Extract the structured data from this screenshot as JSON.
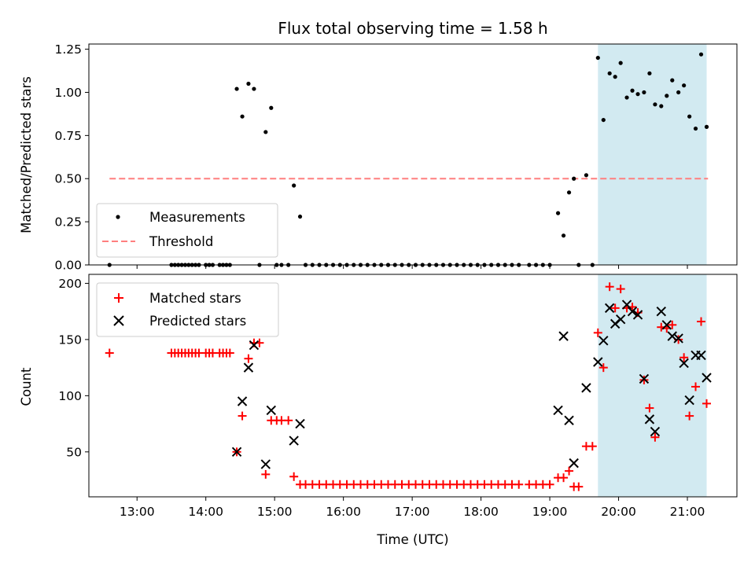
{
  "chart_data": [
    {
      "type": "scatter",
      "title": "Flux total observing time = 1.58 h",
      "xlabel": "",
      "ylabel": "Matched/Predicted stars",
      "ylim": [
        0,
        1.28
      ],
      "yticks": [
        "0.00",
        "0.25",
        "0.50",
        "0.75",
        "1.00",
        "1.25"
      ],
      "ytick_values": [
        0,
        0.25,
        0.5,
        0.75,
        1.0,
        1.25
      ],
      "legend_position": "lower-left",
      "threshold": {
        "name": "Threshold",
        "value": 0.5,
        "x_start": 12.6,
        "x_end": 21.3,
        "color": "#ff7f7f"
      },
      "highlight_range": {
        "x_start": 19.7,
        "x_end": 21.28,
        "color": "#add8e6"
      },
      "series": [
        {
          "name": "Measurements",
          "color": "#000000",
          "points": [
            [
              12.6,
              0
            ],
            [
              13.5,
              0
            ],
            [
              13.55,
              0
            ],
            [
              13.6,
              0
            ],
            [
              13.65,
              0
            ],
            [
              13.7,
              0
            ],
            [
              13.75,
              0
            ],
            [
              13.8,
              0
            ],
            [
              13.85,
              0
            ],
            [
              13.9,
              0
            ],
            [
              14.0,
              0
            ],
            [
              14.05,
              0
            ],
            [
              14.1,
              0
            ],
            [
              14.2,
              0
            ],
            [
              14.25,
              0
            ],
            [
              14.3,
              0
            ],
            [
              14.35,
              0
            ],
            [
              14.45,
              1.02
            ],
            [
              14.53,
              0.86
            ],
            [
              14.62,
              1.05
            ],
            [
              14.7,
              1.02
            ],
            [
              14.78,
              0
            ],
            [
              14.87,
              0.77
            ],
            [
              14.95,
              0.91
            ],
            [
              15.03,
              0
            ],
            [
              15.1,
              0
            ],
            [
              15.2,
              0
            ],
            [
              15.28,
              0.46
            ],
            [
              15.37,
              0.28
            ],
            [
              15.45,
              0
            ],
            [
              15.55,
              0
            ],
            [
              15.65,
              0
            ],
            [
              15.75,
              0
            ],
            [
              15.85,
              0
            ],
            [
              15.95,
              0
            ],
            [
              16.05,
              0
            ],
            [
              16.15,
              0
            ],
            [
              16.25,
              0
            ],
            [
              16.35,
              0
            ],
            [
              16.45,
              0
            ],
            [
              16.55,
              0
            ],
            [
              16.65,
              0
            ],
            [
              16.75,
              0
            ],
            [
              16.85,
              0
            ],
            [
              16.95,
              0
            ],
            [
              17.05,
              0
            ],
            [
              17.15,
              0
            ],
            [
              17.25,
              0
            ],
            [
              17.35,
              0
            ],
            [
              17.45,
              0
            ],
            [
              17.55,
              0
            ],
            [
              17.65,
              0
            ],
            [
              17.75,
              0
            ],
            [
              17.85,
              0
            ],
            [
              17.95,
              0
            ],
            [
              18.05,
              0
            ],
            [
              18.15,
              0
            ],
            [
              18.25,
              0
            ],
            [
              18.35,
              0
            ],
            [
              18.45,
              0
            ],
            [
              18.55,
              0
            ],
            [
              18.7,
              0
            ],
            [
              18.8,
              0
            ],
            [
              18.9,
              0
            ],
            [
              19.0,
              0
            ],
            [
              19.12,
              0.3
            ],
            [
              19.2,
              0.17
            ],
            [
              19.28,
              0.42
            ],
            [
              19.35,
              0.5
            ],
            [
              19.42,
              0
            ],
            [
              19.53,
              0.52
            ],
            [
              19.62,
              0
            ],
            [
              19.7,
              1.2
            ],
            [
              19.78,
              0.84
            ],
            [
              19.87,
              1.11
            ],
            [
              19.95,
              1.09
            ],
            [
              20.03,
              1.17
            ],
            [
              20.12,
              0.97
            ],
            [
              20.2,
              1.01
            ],
            [
              20.28,
              0.99
            ],
            [
              20.37,
              1.0
            ],
            [
              20.45,
              1.11
            ],
            [
              20.53,
              0.93
            ],
            [
              20.62,
              0.92
            ],
            [
              20.7,
              0.98
            ],
            [
              20.78,
              1.07
            ],
            [
              20.87,
              1.0
            ],
            [
              20.95,
              1.04
            ],
            [
              21.03,
              0.86
            ],
            [
              21.12,
              0.79
            ],
            [
              21.2,
              1.22
            ],
            [
              21.28,
              0.8
            ]
          ]
        }
      ]
    },
    {
      "type": "scatter",
      "title": "",
      "xlabel": "Time (UTC)",
      "ylabel": "Count",
      "xlim": [
        12.3,
        21.72
      ],
      "ylim": [
        10,
        208
      ],
      "xticks": [
        "13:00",
        "14:00",
        "15:00",
        "16:00",
        "17:00",
        "18:00",
        "19:00",
        "20:00",
        "21:00"
      ],
      "xtick_values": [
        13,
        14,
        15,
        16,
        17,
        18,
        19,
        20,
        21
      ],
      "yticks": [
        "50",
        "100",
        "150",
        "200"
      ],
      "ytick_values": [
        50,
        100,
        150,
        200
      ],
      "legend_position": "top-left",
      "highlight_range": {
        "x_start": 19.7,
        "x_end": 21.28,
        "color": "#add8e6"
      },
      "series": [
        {
          "name": "Matched stars",
          "color": "#ff0000",
          "marker": "plus",
          "points": [
            [
              12.6,
              138
            ],
            [
              13.5,
              138
            ],
            [
              13.55,
              138
            ],
            [
              13.6,
              138
            ],
            [
              13.65,
              138
            ],
            [
              13.7,
              138
            ],
            [
              13.75,
              138
            ],
            [
              13.8,
              138
            ],
            [
              13.85,
              138
            ],
            [
              13.9,
              138
            ],
            [
              14.0,
              138
            ],
            [
              14.05,
              138
            ],
            [
              14.1,
              138
            ],
            [
              14.2,
              138
            ],
            [
              14.25,
              138
            ],
            [
              14.3,
              138
            ],
            [
              14.35,
              138
            ],
            [
              14.45,
              50
            ],
            [
              14.53,
              82
            ],
            [
              14.62,
              133
            ],
            [
              14.7,
              147
            ],
            [
              14.78,
              147
            ],
            [
              14.87,
              30
            ],
            [
              14.95,
              78
            ],
            [
              15.03,
              78
            ],
            [
              15.1,
              78
            ],
            [
              15.2,
              78
            ],
            [
              15.28,
              28
            ],
            [
              15.37,
              21
            ],
            [
              15.45,
              21
            ],
            [
              15.55,
              21
            ],
            [
              15.65,
              21
            ],
            [
              15.75,
              21
            ],
            [
              15.85,
              21
            ],
            [
              15.95,
              21
            ],
            [
              16.05,
              21
            ],
            [
              16.15,
              21
            ],
            [
              16.25,
              21
            ],
            [
              16.35,
              21
            ],
            [
              16.45,
              21
            ],
            [
              16.55,
              21
            ],
            [
              16.65,
              21
            ],
            [
              16.75,
              21
            ],
            [
              16.85,
              21
            ],
            [
              16.95,
              21
            ],
            [
              17.05,
              21
            ],
            [
              17.15,
              21
            ],
            [
              17.25,
              21
            ],
            [
              17.35,
              21
            ],
            [
              17.45,
              21
            ],
            [
              17.55,
              21
            ],
            [
              17.65,
              21
            ],
            [
              17.75,
              21
            ],
            [
              17.85,
              21
            ],
            [
              17.95,
              21
            ],
            [
              18.05,
              21
            ],
            [
              18.15,
              21
            ],
            [
              18.25,
              21
            ],
            [
              18.35,
              21
            ],
            [
              18.45,
              21
            ],
            [
              18.55,
              21
            ],
            [
              18.7,
              21
            ],
            [
              18.8,
              21
            ],
            [
              18.9,
              21
            ],
            [
              19.0,
              21
            ],
            [
              19.12,
              27
            ],
            [
              19.2,
              27
            ],
            [
              19.28,
              33
            ],
            [
              19.35,
              19
            ],
            [
              19.42,
              19
            ],
            [
              19.53,
              55
            ],
            [
              19.62,
              55
            ],
            [
              19.7,
              156
            ],
            [
              19.78,
              125
            ],
            [
              19.87,
              197
            ],
            [
              19.95,
              178
            ],
            [
              20.03,
              195
            ],
            [
              20.12,
              178
            ],
            [
              20.2,
              179
            ],
            [
              20.28,
              174
            ],
            [
              20.37,
              114
            ],
            [
              20.45,
              89
            ],
            [
              20.53,
              63
            ],
            [
              20.62,
              161
            ],
            [
              20.7,
              160
            ],
            [
              20.78,
              163
            ],
            [
              20.87,
              150
            ],
            [
              20.95,
              134
            ],
            [
              21.03,
              82
            ],
            [
              21.12,
              108
            ],
            [
              21.2,
              166
            ],
            [
              21.28,
              93
            ]
          ]
        },
        {
          "name": "Predicted stars",
          "color": "#000000",
          "marker": "x",
          "points": [
            [
              14.45,
              50
            ],
            [
              14.53,
              95
            ],
            [
              14.62,
              125
            ],
            [
              14.7,
              145
            ],
            [
              14.87,
              39
            ],
            [
              14.95,
              87
            ],
            [
              15.28,
              60
            ],
            [
              15.37,
              75
            ],
            [
              19.12,
              87
            ],
            [
              19.2,
              153
            ],
            [
              19.28,
              78
            ],
            [
              19.35,
              40
            ],
            [
              19.53,
              107
            ],
            [
              19.7,
              130
            ],
            [
              19.78,
              149
            ],
            [
              19.87,
              178
            ],
            [
              19.95,
              164
            ],
            [
              20.03,
              168
            ],
            [
              20.12,
              181
            ],
            [
              20.2,
              175
            ],
            [
              20.28,
              172
            ],
            [
              20.37,
              115
            ],
            [
              20.45,
              79
            ],
            [
              20.53,
              68
            ],
            [
              20.62,
              175
            ],
            [
              20.7,
              163
            ],
            [
              20.78,
              153
            ],
            [
              20.87,
              151
            ],
            [
              20.95,
              129
            ],
            [
              21.03,
              96
            ],
            [
              21.12,
              136
            ],
            [
              21.2,
              136
            ],
            [
              21.28,
              116
            ]
          ]
        }
      ]
    }
  ]
}
